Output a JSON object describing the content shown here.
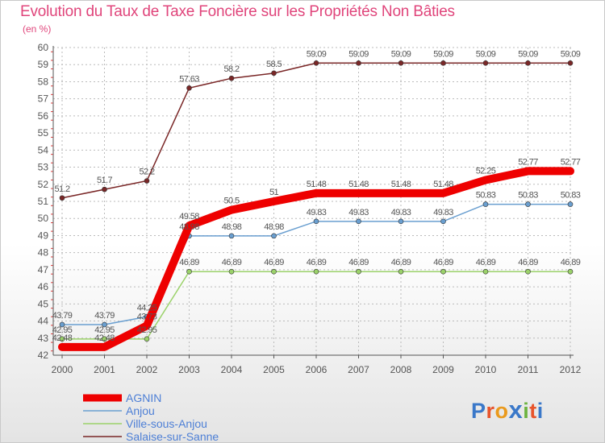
{
  "header": {
    "title": "Evolution du Taux de Taxe Foncière sur les Propriétés Non Bâties",
    "unit": "(en %)"
  },
  "brand": {
    "letters": [
      "P",
      "r",
      "o",
      "x",
      "i",
      "t",
      "i"
    ]
  },
  "colors": {
    "grid": "#bbbbbb",
    "axis": "#555555",
    "label": "#555555",
    "title": "#e0457b",
    "brand": [
      "#3a78c9",
      "#e8542b",
      "#ea9a1d",
      "#3a78c9",
      "#6cb33f",
      "#e8542b",
      "#3a78c9"
    ]
  },
  "chart_data": {
    "type": "line",
    "title": "Evolution du Taux de Taxe Foncière sur les Propriétés Non Bâties",
    "ylabel": "(en %)",
    "xlabel": "",
    "ylim": [
      42,
      60
    ],
    "grid": true,
    "legend_position": "bottom-left",
    "x": [
      "2000",
      "2001",
      "2002",
      "2003",
      "2004",
      "2005",
      "2006",
      "2007",
      "2008",
      "2009",
      "2010",
      "2011",
      "2012"
    ],
    "y_ticks": [
      "42",
      "43",
      "44",
      "45",
      "46",
      "47",
      "48",
      "49",
      "50",
      "51",
      "52",
      "53",
      "54",
      "55",
      "56",
      "57",
      "58",
      "59",
      "60"
    ],
    "series": [
      {
        "name": "Salaise-sur-Sanne",
        "color": "#7a2727",
        "markers": true,
        "values": [
          51.2,
          51.7,
          52.2,
          57.63,
          58.2,
          58.5,
          59.09,
          59.09,
          59.09,
          59.09,
          59.09,
          59.09,
          59.09
        ],
        "labels": [
          "51.2",
          "51.7",
          "52.2",
          "57.63",
          "58.2",
          "58.5",
          "59.09",
          "59.09",
          "59.09",
          "59.09",
          "59.09",
          "59.09",
          "59.09"
        ]
      },
      {
        "name": "Anjou",
        "color": "#6a9fd0",
        "markers": true,
        "values": [
          43.79,
          43.79,
          44.25,
          48.98,
          48.98,
          48.98,
          49.83,
          49.83,
          49.83,
          49.83,
          50.83,
          50.83,
          50.83
        ],
        "labels": [
          "43.79",
          "43.79",
          "44.25",
          "48.98",
          "48.98",
          "48.98",
          "49.83",
          "49.83",
          "49.83",
          "49.83",
          "50.83",
          "50.83",
          "50.83"
        ]
      },
      {
        "name": "Ville-sous-Anjou",
        "color": "#9bd26a",
        "markers": true,
        "values": [
          42.95,
          42.95,
          42.95,
          46.89,
          46.89,
          46.89,
          46.89,
          46.89,
          46.89,
          46.89,
          46.89,
          46.89,
          46.89
        ],
        "labels": [
          "42.95",
          "42.95",
          "42.95",
          "46.89",
          "46.89",
          "46.89",
          "46.89",
          "46.89",
          "46.89",
          "46.89",
          "46.89",
          "46.89",
          "46.89"
        ]
      },
      {
        "name": "AGNIN",
        "color": "#ee0000",
        "markers": false,
        "values": [
          42.48,
          42.48,
          43.73,
          49.58,
          50.5,
          51,
          51.48,
          51.48,
          51.48,
          51.48,
          52.25,
          52.77,
          52.77
        ],
        "labels": [
          "42.48",
          "42.48",
          "43.73",
          "49.58",
          "50.5",
          "51",
          "51.48",
          "51.48",
          "51.48",
          "51.48",
          "52.25",
          "52.77",
          "52.77"
        ]
      }
    ],
    "legend": [
      "AGNIN",
      "Anjou",
      "Ville-sous-Anjou",
      "Salaise-sur-Sanne"
    ]
  }
}
